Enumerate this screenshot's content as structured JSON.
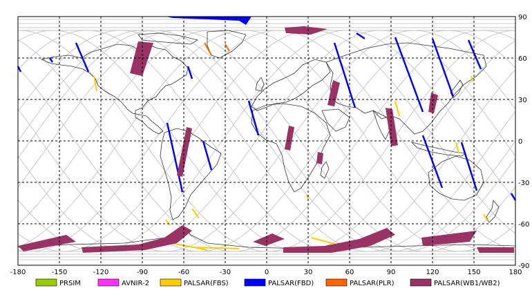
{
  "map": {
    "lon_ticks": [
      "-180",
      "-150",
      "-120",
      "-90",
      "-60",
      "-30",
      "0",
      "30",
      "60",
      "90",
      "120",
      "150",
      "180"
    ],
    "lat_ticks_right": [
      "90",
      "60",
      "30",
      "0",
      "-30",
      "-60",
      "-90"
    ],
    "colors": {
      "frame": "#000000",
      "grid": "#000000",
      "coast": "#333333",
      "track": "#c8c8c8"
    }
  },
  "legend": [
    {
      "label": "PRSIM",
      "color": "#99cc00"
    },
    {
      "label": "AVNIR-2",
      "color": "#ff33ff"
    },
    {
      "label": "PALSAR(FBS)",
      "color": "#ffcc00"
    },
    {
      "label": "PALSAR(FBD)",
      "color": "#0000ff"
    },
    {
      "label": "PALSAR(PLR)",
      "color": "#ff6600"
    },
    {
      "label": "PALSAR(WB1/WB2)",
      "color": "#993366"
    }
  ]
}
